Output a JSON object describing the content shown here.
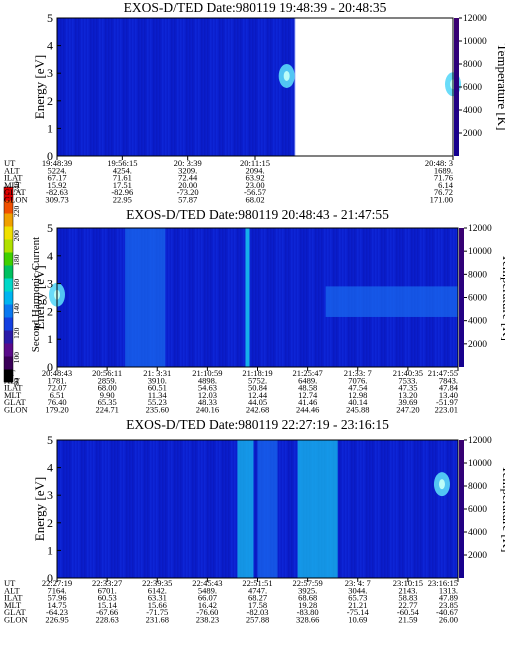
{
  "colors": {
    "background": "#0a1ecc",
    "scale": [
      "#000000",
      "#3a0058",
      "#5a0a8a",
      "#2a1aa8",
      "#1440e0",
      "#0a78f0",
      "#00b4f0",
      "#00d8c8",
      "#00c060",
      "#40d000",
      "#b0e000",
      "#f0e000",
      "#f0a000",
      "#f05000",
      "#e00000"
    ]
  },
  "colorbar": {
    "label": "Second Harmonic Current",
    "ticks": [
      "80",
      "100",
      "120",
      "140",
      "160",
      "180",
      "200",
      "220",
      "240"
    ]
  },
  "chart_data": [
    {
      "type": "heatmap",
      "title": "EXOS-D/TED   Date:980119   19:48:39 - 20:48:35",
      "ylabel": "Energy [eV]",
      "ylim": [
        0,
        5
      ],
      "yticks": [
        "0",
        "1",
        "2",
        "3",
        "4",
        "5"
      ],
      "y2label": "Temperature [K]",
      "y2lim": [
        0,
        12000
      ],
      "y2ticks": [
        "2000",
        "4000",
        "6000",
        "8000",
        "10000",
        "12000"
      ],
      "data_end_fraction": 0.6,
      "features": [
        {
          "kind": "blob",
          "x": 0.58,
          "y": 2.9,
          "intensity": "high"
        },
        {
          "kind": "blob",
          "x": 1.0,
          "y": 2.6,
          "intensity": "high"
        }
      ],
      "table": {
        "row_labels": [
          "UT",
          "ALT",
          "ILAT",
          "MLT",
          "GLAT",
          "GLON"
        ],
        "columns": [
          [
            "19:48:39",
            "5224.",
            "67.17",
            "15.92",
            "-82.63",
            "309.73"
          ],
          [
            "19:56:15",
            "4254.",
            "71.61",
            "17.51",
            "-82.96",
            "22.95"
          ],
          [
            "20: 3:39",
            "3209.",
            "72.44",
            "20.00",
            "-73.20",
            "57.87"
          ],
          [
            "20:11:15",
            "2094.",
            "63.92",
            "23.00",
            "-56.57",
            "68.02"
          ],
          [
            "20:48: 3",
            "1689.",
            "71.76",
            "6.14",
            "76.72",
            "171.00"
          ]
        ]
      }
    },
    {
      "type": "heatmap",
      "title": "EXOS-D/TED   Date:980119   20:48:43 - 21:47:55",
      "ylabel": "Energy [eV]",
      "ylim": [
        0,
        5
      ],
      "yticks": [
        "0",
        "1",
        "2",
        "3",
        "4",
        "5"
      ],
      "y2label": "Temperature [K]",
      "y2lim": [
        0,
        12000
      ],
      "y2ticks": [
        "2000",
        "4000",
        "6000",
        "8000",
        "10000",
        "12000"
      ],
      "data_end_fraction": 1.0,
      "features": [
        {
          "kind": "band",
          "x0": 0.17,
          "x1": 0.27,
          "intensity": "medium"
        },
        {
          "kind": "stripe",
          "x": 0.475,
          "intensity": "high"
        },
        {
          "kind": "band",
          "x0": 0.67,
          "x1": 1.0,
          "y0": 1.8,
          "y1": 2.9,
          "intensity": "medium"
        },
        {
          "kind": "blob",
          "x": 0.0,
          "y": 2.6,
          "intensity": "high"
        }
      ],
      "table": {
        "row_labels": [
          "UT",
          "ALT",
          "ILAT",
          "MLT",
          "GLAT",
          "GLON"
        ],
        "columns": [
          [
            "20:48:43",
            "1781.",
            "72.07",
            "6.51",
            "76.40",
            "179.20"
          ],
          [
            "20:56:11",
            "2859.",
            "68.00",
            "9.90",
            "65.35",
            "224.71"
          ],
          [
            "21: 3:31",
            "3910.",
            "60.51",
            "11.34",
            "55.23",
            "235.60"
          ],
          [
            "21:10:59",
            "4898.",
            "54.63",
            "12.03",
            "48.33",
            "240.16"
          ],
          [
            "21:18:19",
            "5752.",
            "50.84",
            "12.44",
            "44.05",
            "242.68"
          ],
          [
            "21:25:47",
            "6489.",
            "48.58",
            "12.74",
            "41.46",
            "244.46"
          ],
          [
            "21:33: 7",
            "7076.",
            "47.54",
            "12.98",
            "40.14",
            "245.88"
          ],
          [
            "21:40:35",
            "7533.",
            "47.35",
            "13.20",
            "39.69",
            "247.20"
          ],
          [
            "21:47:55",
            "7843.",
            "47.84",
            "13.40",
            "-51.97",
            "223.01"
          ]
        ]
      }
    },
    {
      "type": "heatmap",
      "title": "EXOS-D/TED   Date:980119   22:27:19 - 23:16:15",
      "ylabel": "Energy [eV]",
      "ylim": [
        0,
        5
      ],
      "yticks": [
        "0",
        "1",
        "2",
        "3",
        "4",
        "5"
      ],
      "y2label": "Temperature [K]",
      "y2lim": [
        0,
        12000
      ],
      "y2ticks": [
        "2000",
        "4000",
        "6000",
        "8000",
        "10000",
        "12000"
      ],
      "data_end_fraction": 1.0,
      "features": [
        {
          "kind": "band",
          "x0": 0.45,
          "x1": 0.49,
          "intensity": "high"
        },
        {
          "kind": "band",
          "x0": 0.5,
          "x1": 0.55,
          "intensity": "medium"
        },
        {
          "kind": "band",
          "x0": 0.6,
          "x1": 0.7,
          "intensity": "high"
        },
        {
          "kind": "blob",
          "x": 0.96,
          "y": 3.4,
          "intensity": "high"
        }
      ],
      "table": {
        "row_labels": [
          "UT",
          "ALT",
          "ILAT",
          "MLT",
          "GLAT",
          "GLON"
        ],
        "columns": [
          [
            "22:27:19",
            "7164.",
            "57.96",
            "14.75",
            "-64.23",
            "226.95"
          ],
          [
            "22:33:27",
            "6701.",
            "60.53",
            "15.14",
            "-67.66",
            "228.63"
          ],
          [
            "22:39:35",
            "6142.",
            "63.31",
            "15.66",
            "-71.75",
            "231.68"
          ],
          [
            "22:45:43",
            "5489.",
            "66.07",
            "16.42",
            "-76.60",
            "238.23"
          ],
          [
            "22:51:51",
            "4747.",
            "68.27",
            "17.58",
            "-82.03",
            "257.88"
          ],
          [
            "22:57:59",
            "3925.",
            "68.68",
            "19.28",
            "-83.80",
            "328.66"
          ],
          [
            "23: 4: 7",
            "3044.",
            "65.73",
            "21.21",
            "-75.14",
            "10.69"
          ],
          [
            "23:10:15",
            "2143.",
            "58.83",
            "22.77",
            "-60.54",
            "21.59"
          ],
          [
            "23:16:15",
            "1313.",
            "47.89",
            "23.85",
            "-40.67",
            "26.00"
          ]
        ]
      }
    }
  ]
}
